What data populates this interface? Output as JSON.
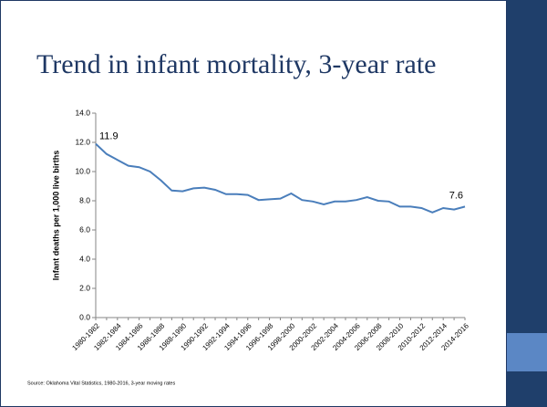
{
  "chart_data": {
    "type": "line",
    "title": "Trend in infant mortality, 3-year rate",
    "y_label": "Infant deaths per 1,000 live births",
    "source": "Source: Oklahoma Vital Statistics, 1980-2016, 3-year moving rates",
    "categories": [
      "1980-1982",
      null,
      "1982-1984",
      null,
      "1984-1986",
      null,
      "1986-1988",
      null,
      "1988-1990",
      null,
      "1990-1992",
      null,
      "1992-1994",
      null,
      "1994-1996",
      null,
      "1996-1998",
      null,
      "1998-2000",
      null,
      "2000-2002",
      null,
      "2002-2004",
      null,
      "2004-2006",
      null,
      "2006-2008",
      null,
      "2008-2010",
      null,
      "2010-2012",
      null,
      "2012-2014",
      null,
      "2014-2016"
    ],
    "values": [
      11.9,
      11.2,
      10.8,
      10.4,
      10.3,
      10.0,
      9.4,
      8.7,
      8.65,
      8.85,
      8.9,
      8.75,
      8.45,
      8.45,
      8.4,
      8.05,
      8.1,
      8.15,
      8.5,
      8.05,
      7.95,
      7.75,
      7.95,
      7.95,
      8.05,
      8.25,
      8.0,
      7.95,
      7.6,
      7.6,
      7.5,
      7.2,
      7.5,
      7.4,
      7.6
    ],
    "color": "#4a7ebb",
    "data_labels": "ends",
    "ylim": [
      0,
      14
    ],
    "yticks": [
      {
        "value": 0,
        "label": "0.0"
      },
      {
        "value": 2,
        "label": "2.0"
      },
      {
        "value": 4,
        "label": "4.0"
      },
      {
        "value": 6,
        "label": "6.0"
      },
      {
        "value": 8,
        "label": "8.0"
      },
      {
        "value": 10,
        "label": "10.0"
      },
      {
        "value": 12,
        "label": "12.0"
      },
      {
        "value": 14,
        "label": "14.0"
      }
    ],
    "grid": false
  }
}
